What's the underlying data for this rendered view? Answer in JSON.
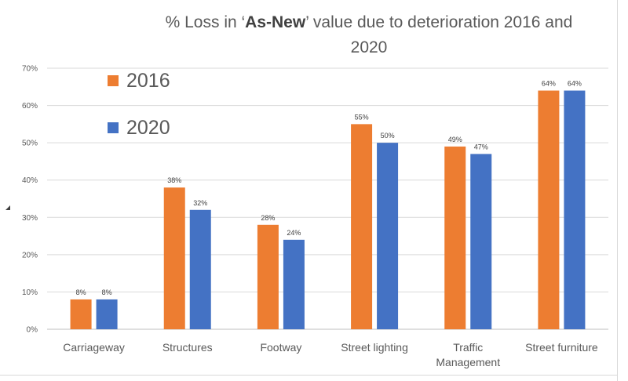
{
  "chart_data": {
    "type": "bar",
    "title": {
      "before": "% Loss in  ‘",
      "emphasis": "As-New",
      "after": "’ value  due to deterioration 2016 and",
      "line2": "2020"
    },
    "categories": [
      "Carriageway",
      "Structures",
      "Footway",
      "Street lighting",
      "Traffic Management",
      "Street furniture"
    ],
    "series": [
      {
        "name": "2016",
        "color": "#ED7D31",
        "values": [
          8,
          38,
          28,
          55,
          49,
          64
        ],
        "value_labels": [
          "8%",
          "38%",
          "28%",
          "55%",
          "49%",
          "64%"
        ]
      },
      {
        "name": "2020",
        "color": "#4472C4",
        "values": [
          8,
          32,
          24,
          50,
          47,
          64
        ],
        "value_labels": [
          "8%",
          "32%",
          "24%",
          "50%",
          "47%",
          "64%"
        ]
      }
    ],
    "ylim": [
      0,
      70
    ],
    "yticks": [
      "0%",
      "10%",
      "20%",
      "30%",
      "40%",
      "50%",
      "60%",
      "70%"
    ],
    "xlabel": "",
    "ylabel": "",
    "grid": true,
    "legend_position": "top-left"
  }
}
